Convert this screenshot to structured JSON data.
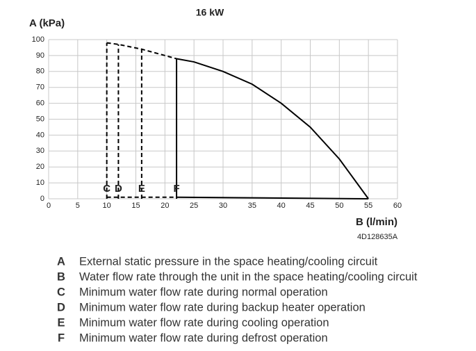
{
  "chart_data": {
    "type": "line",
    "title": "16 kW",
    "ylabel": "A (kPa)",
    "xlabel": "B (l/min)",
    "code": "4D128635A",
    "xlim": [
      0,
      60
    ],
    "ylim": [
      0,
      100
    ],
    "xticks": [
      0,
      5,
      10,
      15,
      20,
      25,
      30,
      35,
      40,
      45,
      50,
      55,
      60
    ],
    "yticks": [
      0,
      10,
      20,
      30,
      40,
      50,
      60,
      70,
      80,
      90,
      100
    ],
    "grid": true,
    "series": [
      {
        "color": "#000000",
        "style": "dashed",
        "x": [
          10,
          12,
          16,
          22
        ],
        "values": [
          98,
          97,
          94,
          88
        ]
      },
      {
        "color": "#000000",
        "style": "solid",
        "x": [
          22,
          25,
          30,
          35,
          40,
          45,
          50,
          55
        ],
        "values": [
          88,
          86,
          80,
          72,
          60,
          45,
          25,
          0
        ]
      },
      {
        "color": "#000000",
        "style": "dashed",
        "x": [
          10,
          22
        ],
        "values": [
          1,
          1
        ]
      },
      {
        "color": "#000000",
        "style": "solid",
        "x": [
          22,
          55
        ],
        "values": [
          1,
          0
        ]
      }
    ],
    "markers": [
      {
        "label": "C",
        "x": 10,
        "top": 98,
        "style": "dashed"
      },
      {
        "label": "D",
        "x": 12,
        "top": 97,
        "style": "dashed"
      },
      {
        "label": "E",
        "x": 16,
        "top": 94,
        "style": "dashed"
      },
      {
        "label": "F",
        "x": 22,
        "top": 88,
        "style": "solid"
      }
    ]
  },
  "key": [
    {
      "letter": "A",
      "text": "External static pressure in the space heating/cooling circuit"
    },
    {
      "letter": "B",
      "text": "Water flow rate through the unit in the space heating/cooling circuit"
    },
    {
      "letter": "C",
      "text": "Minimum water flow rate during normal operation"
    },
    {
      "letter": "D",
      "text": "Minimum water flow rate during backup heater operation"
    },
    {
      "letter": "E",
      "text": "Minimum water flow rate during cooling operation"
    },
    {
      "letter": "F",
      "text": "Minimum water flow rate during defrost operation"
    }
  ]
}
